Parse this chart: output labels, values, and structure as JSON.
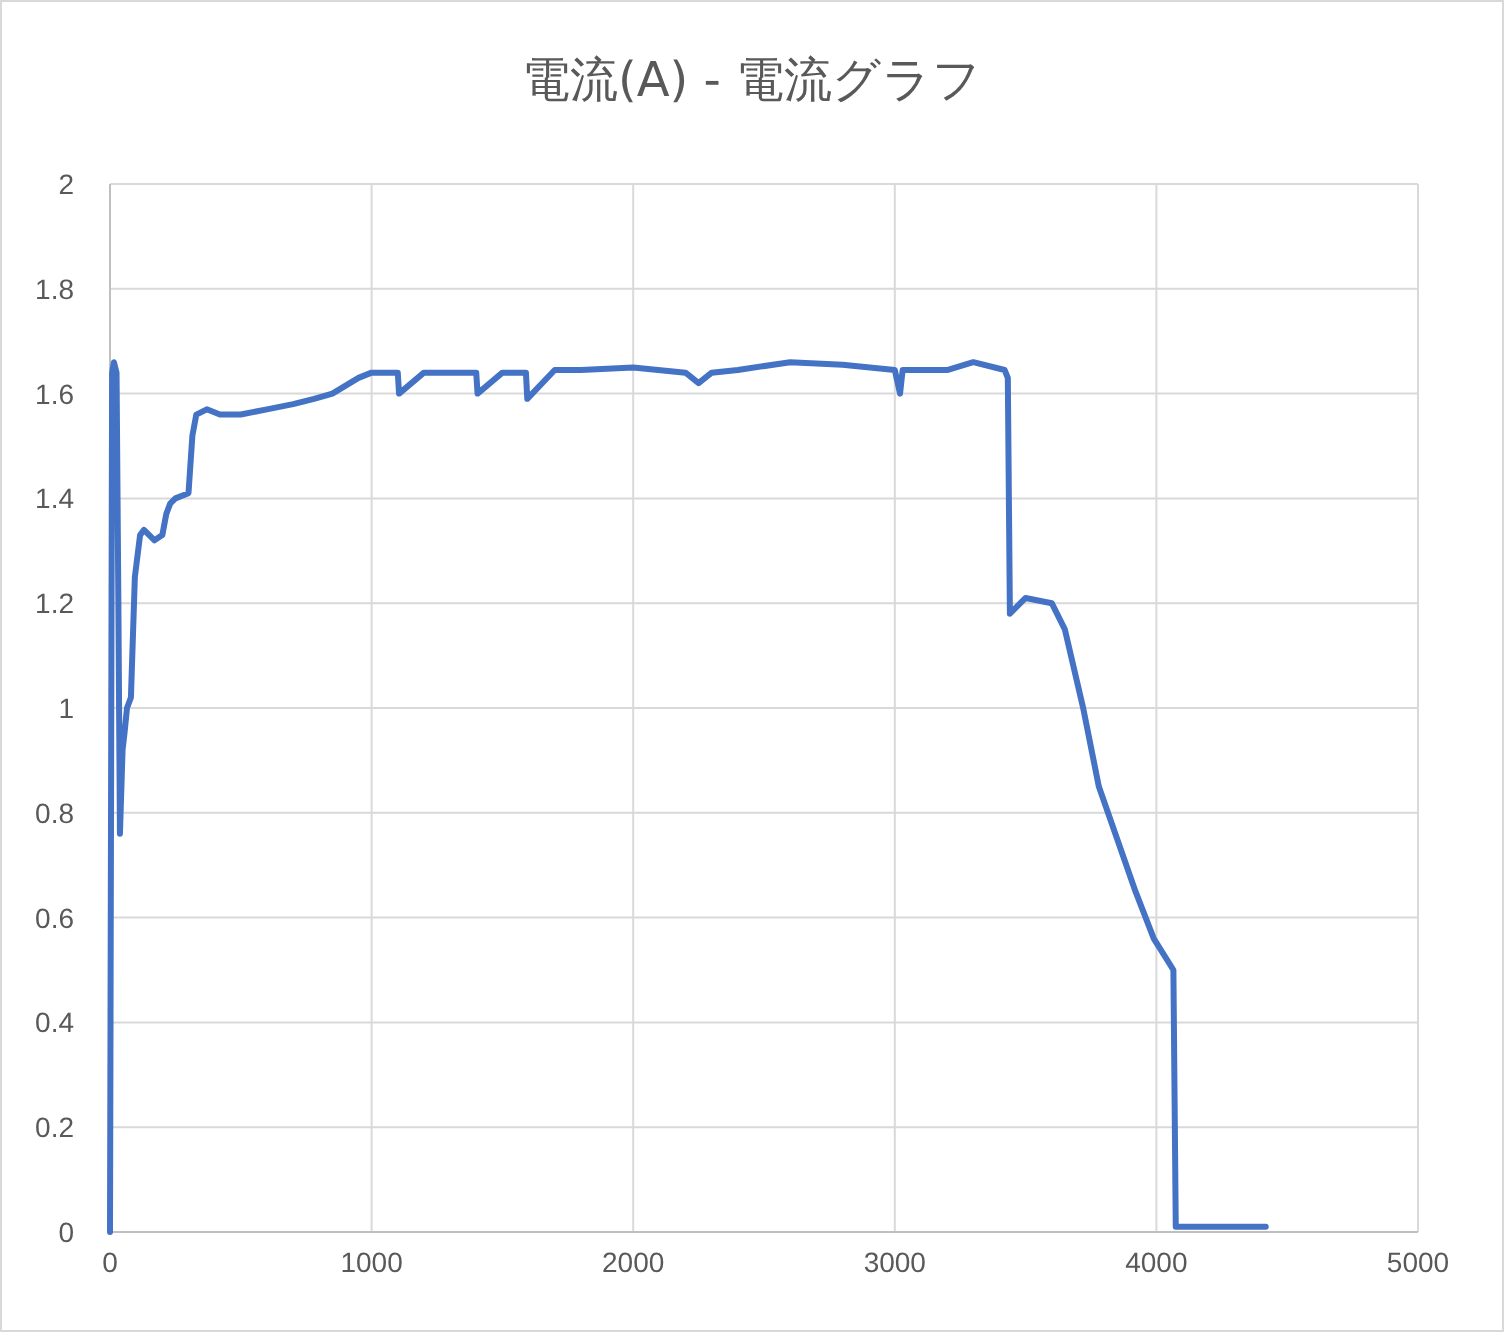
{
  "chart_data": {
    "type": "line",
    "title": "電流(A) - 電流グラフ",
    "color": "#4472c4",
    "x": [
      0,
      8,
      15,
      25,
      32,
      38,
      48,
      55,
      65,
      80,
      95,
      115,
      130,
      150,
      170,
      200,
      215,
      230,
      250,
      300,
      315,
      330,
      370,
      420,
      450,
      500,
      600,
      700,
      780,
      850,
      950,
      1000,
      1100,
      1105,
      1200,
      1400,
      1405,
      1500,
      1590,
      1595,
      1700,
      1800,
      2000,
      2200,
      2250,
      2300,
      2400,
      2600,
      2800,
      3000,
      3020,
      3030,
      3200,
      3300,
      3420,
      3432,
      3440,
      3500,
      3600,
      3650,
      3720,
      3780,
      3850,
      3920,
      3990,
      4040,
      4065,
      4074,
      4418
    ],
    "values": [
      0,
      1.64,
      1.66,
      1.64,
      1.2,
      0.76,
      0.92,
      0.95,
      1.0,
      1.02,
      1.25,
      1.33,
      1.34,
      1.33,
      1.32,
      1.33,
      1.37,
      1.39,
      1.4,
      1.41,
      1.52,
      1.56,
      1.57,
      1.56,
      1.56,
      1.56,
      1.57,
      1.58,
      1.59,
      1.6,
      1.63,
      1.64,
      1.64,
      1.6,
      1.64,
      1.64,
      1.6,
      1.64,
      1.64,
      1.59,
      1.645,
      1.645,
      1.65,
      1.64,
      1.62,
      1.64,
      1.645,
      1.66,
      1.655,
      1.645,
      1.6,
      1.645,
      1.645,
      1.66,
      1.645,
      1.63,
      1.18,
      1.21,
      1.2,
      1.15,
      1.0,
      0.85,
      0.75,
      0.65,
      0.56,
      0.52,
      0.5,
      0.01,
      0.01
    ],
    "xlim": [
      0,
      5000
    ],
    "xticks": [
      0,
      1000,
      2000,
      3000,
      4000,
      5000
    ],
    "ylim": [
      0,
      2
    ],
    "yticks": [
      0,
      0.2,
      0.4,
      0.6,
      0.8,
      1,
      1.2,
      1.4,
      1.6,
      1.8,
      2
    ],
    "grid": true
  }
}
